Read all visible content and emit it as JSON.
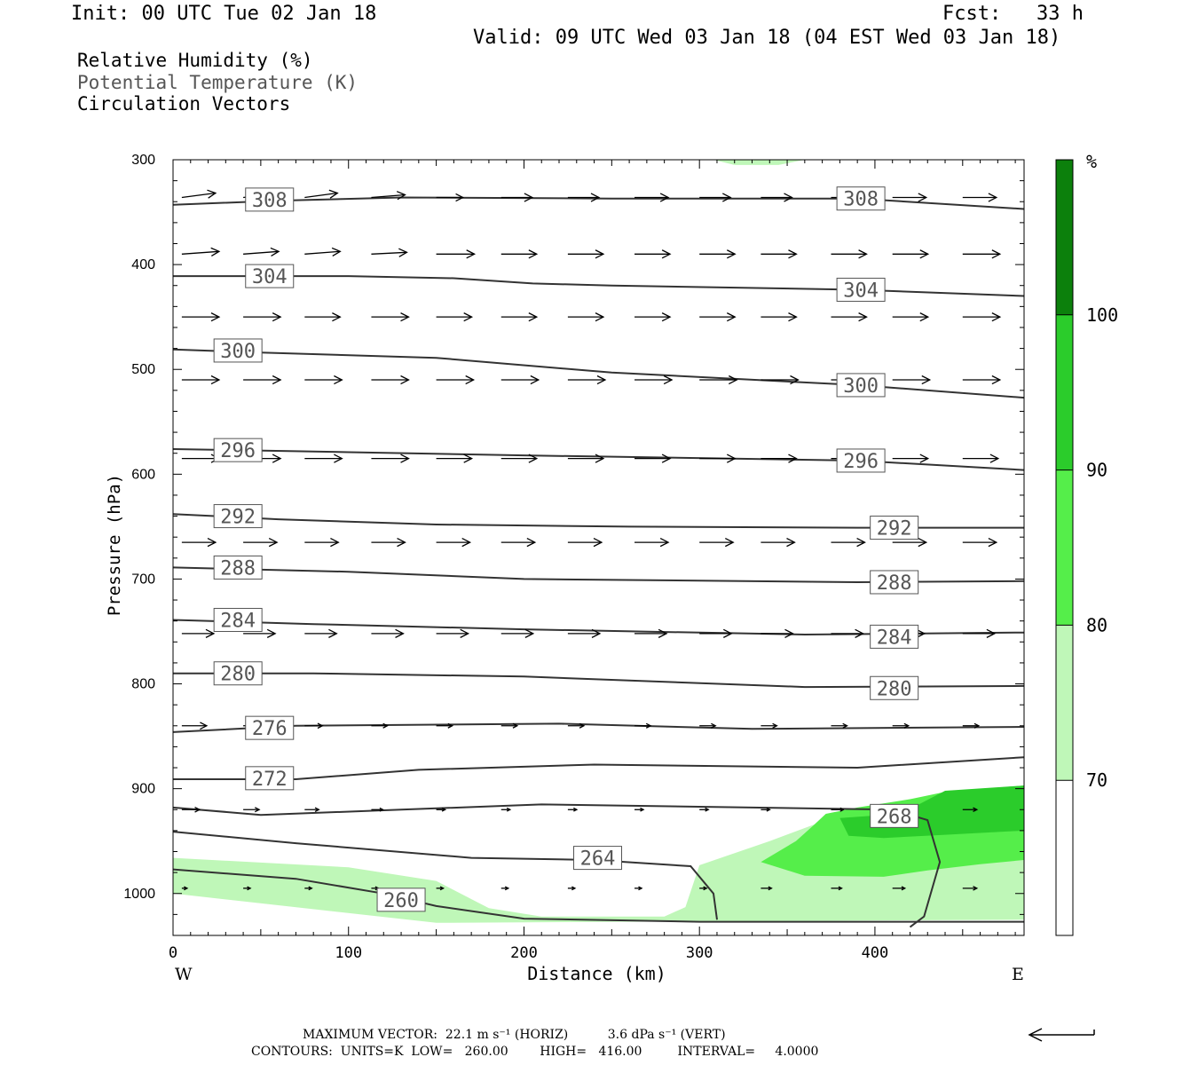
{
  "header": {
    "init": "Init: 00 UTC Tue 02 Jan 18",
    "fcst": "Fcst:   33 h",
    "valid": "Valid: 09 UTC Wed 03 Jan 18 (04 EST Wed 03 Jan 18)",
    "field1": "Relative Humidity (%)",
    "field2": "Potential Temperature (K)",
    "field3": "Circulation Vectors"
  },
  "footer": {
    "vector_line": "MAXIMUM VECTOR:  22.1 m s⁻¹ (HORIZ)          3.6 dPa s⁻¹ (VERT)",
    "contour_line": "CONTOURS:  UNITS=K  LOW=   260.00        HIGH=   416.00         INTERVAL=     4.0000"
  },
  "colorbar": {
    "unit": "%",
    "ticks": [
      "70",
      "80",
      "90",
      "100"
    ],
    "colors": [
      "#ffffff",
      "#bff7b8",
      "#55ee4a",
      "#2bcc2b",
      "#0c800c"
    ]
  },
  "chart_data": {
    "type": "cross-section",
    "xlabel": "Distance (km)",
    "ylabel": "Pressure (hPa)",
    "xlim": [
      0,
      485
    ],
    "ylim": [
      300,
      1040
    ],
    "x_ticks": [
      "0",
      "100",
      "200",
      "300",
      "400"
    ],
    "y_ticks": [
      "300",
      "400",
      "500",
      "600",
      "700",
      "800",
      "900",
      "1000"
    ],
    "x_end_labels": {
      "left": "W",
      "right": "E"
    },
    "contour_labels": [
      {
        "value": "308",
        "x": 55,
        "p": 338
      },
      {
        "value": "308",
        "x": 392,
        "p": 337
      },
      {
        "value": "304",
        "x": 55,
        "p": 411
      },
      {
        "value": "304",
        "x": 392,
        "p": 424
      },
      {
        "value": "300",
        "x": 37,
        "p": 482
      },
      {
        "value": "300",
        "x": 392,
        "p": 515
      },
      {
        "value": "296",
        "x": 37,
        "p": 577
      },
      {
        "value": "296",
        "x": 392,
        "p": 587
      },
      {
        "value": "292",
        "x": 37,
        "p": 640
      },
      {
        "value": "292",
        "x": 411,
        "p": 651
      },
      {
        "value": "288",
        "x": 37,
        "p": 689
      },
      {
        "value": "288",
        "x": 411,
        "p": 703
      },
      {
        "value": "284",
        "x": 37,
        "p": 739
      },
      {
        "value": "284",
        "x": 411,
        "p": 755
      },
      {
        "value": "280",
        "x": 37,
        "p": 790
      },
      {
        "value": "280",
        "x": 411,
        "p": 804
      },
      {
        "value": "276",
        "x": 55,
        "p": 842
      },
      {
        "value": "272",
        "x": 55,
        "p": 890
      },
      {
        "value": "268",
        "x": 411,
        "p": 926
      },
      {
        "value": "264",
        "x": 242,
        "p": 966
      },
      {
        "value": "260",
        "x": 130,
        "p": 1006
      }
    ],
    "isentropes": [
      {
        "theta": 308,
        "pts": [
          [
            0,
            343
          ],
          [
            60,
            339
          ],
          [
            130,
            336
          ],
          [
            250,
            337
          ],
          [
            390,
            337
          ],
          [
            485,
            347
          ]
        ]
      },
      {
        "theta": 304,
        "pts": [
          [
            0,
            411
          ],
          [
            100,
            411
          ],
          [
            160,
            413
          ],
          [
            205,
            418
          ],
          [
            250,
            420
          ],
          [
            390,
            424
          ],
          [
            485,
            430
          ]
        ]
      },
      {
        "theta": 300,
        "pts": [
          [
            0,
            481
          ],
          [
            50,
            484
          ],
          [
            150,
            489
          ],
          [
            250,
            503
          ],
          [
            390,
            515
          ],
          [
            485,
            527
          ]
        ]
      },
      {
        "theta": 296,
        "pts": [
          [
            0,
            576
          ],
          [
            100,
            579
          ],
          [
            200,
            582
          ],
          [
            390,
            587
          ],
          [
            485,
            596
          ]
        ]
      },
      {
        "theta": 292,
        "pts": [
          [
            0,
            638
          ],
          [
            60,
            643
          ],
          [
            150,
            648
          ],
          [
            260,
            650
          ],
          [
            390,
            651
          ],
          [
            485,
            651
          ]
        ]
      },
      {
        "theta": 288,
        "pts": [
          [
            0,
            689
          ],
          [
            100,
            693
          ],
          [
            200,
            700
          ],
          [
            390,
            703
          ],
          [
            485,
            702
          ]
        ]
      },
      {
        "theta": 284,
        "pts": [
          [
            0,
            739
          ],
          [
            80,
            743
          ],
          [
            200,
            748
          ],
          [
            360,
            753
          ],
          [
            485,
            751
          ]
        ]
      },
      {
        "theta": 280,
        "pts": [
          [
            0,
            790
          ],
          [
            80,
            790
          ],
          [
            200,
            793
          ],
          [
            360,
            803
          ],
          [
            485,
            802
          ]
        ]
      },
      {
        "theta": 276,
        "pts": [
          [
            0,
            846
          ],
          [
            70,
            840
          ],
          [
            220,
            838
          ],
          [
            330,
            843
          ],
          [
            485,
            841
          ]
        ]
      },
      {
        "theta": 272,
        "pts": [
          [
            0,
            891
          ],
          [
            70,
            891
          ],
          [
            140,
            882
          ],
          [
            240,
            877
          ],
          [
            390,
            880
          ],
          [
            485,
            870
          ]
        ]
      },
      {
        "theta": 268,
        "pts": [
          [
            0,
            918
          ],
          [
            50,
            925
          ],
          [
            130,
            920
          ],
          [
            210,
            915
          ],
          [
            330,
            918
          ],
          [
            410,
            920
          ],
          [
            430,
            930
          ],
          [
            437,
            970
          ],
          [
            428,
            1022
          ],
          [
            420,
            1032
          ]
        ]
      },
      {
        "theta": 264,
        "pts": [
          [
            0,
            941
          ],
          [
            70,
            952
          ],
          [
            170,
            966
          ],
          [
            240,
            968
          ],
          [
            295,
            974
          ],
          [
            308,
            1000
          ],
          [
            310,
            1025
          ]
        ]
      },
      {
        "theta": 260,
        "pts": [
          [
            0,
            977
          ],
          [
            70,
            986
          ],
          [
            120,
            1000
          ],
          [
            150,
            1012
          ],
          [
            200,
            1024
          ],
          [
            300,
            1027
          ],
          [
            485,
            1027
          ]
        ]
      }
    ],
    "rh_regions": [
      {
        "band": "70-80",
        "pts": [
          [
            0,
            966
          ],
          [
            100,
            975
          ],
          [
            150,
            988
          ],
          [
            180,
            1014
          ],
          [
            210,
            1022
          ],
          [
            280,
            1022
          ],
          [
            292,
            1013
          ],
          [
            300,
            973
          ],
          [
            340,
            950
          ],
          [
            380,
            925
          ],
          [
            420,
            910
          ],
          [
            485,
            900
          ],
          [
            485,
            1025
          ],
          [
            150,
            1028
          ],
          [
            0,
            1000
          ]
        ]
      },
      {
        "band": "80-90",
        "pts": [
          [
            335,
            970
          ],
          [
            355,
            950
          ],
          [
            365,
            935
          ],
          [
            372,
            924
          ],
          [
            390,
            918
          ],
          [
            420,
            910
          ],
          [
            440,
            903
          ],
          [
            485,
            897
          ],
          [
            485,
            968
          ],
          [
            460,
            972
          ],
          [
            430,
            978
          ],
          [
            405,
            984
          ],
          [
            360,
            983
          ]
        ]
      },
      {
        "band": "90-100",
        "pts": [
          [
            380,
            928
          ],
          [
            405,
            925
          ],
          [
            425,
            915
          ],
          [
            440,
            902
          ],
          [
            485,
            897
          ],
          [
            485,
            940
          ],
          [
            440,
            944
          ],
          [
            405,
            947
          ],
          [
            385,
            945
          ]
        ]
      },
      {
        "band": "70-80",
        "pts": [
          [
            308,
            300
          ],
          [
            320,
            305
          ],
          [
            345,
            305
          ],
          [
            360,
            300
          ]
        ]
      }
    ],
    "vector_rows": [
      {
        "p": 336,
        "x": [
          5,
          40,
          75,
          113,
          150,
          187,
          225,
          263,
          300,
          335,
          375,
          410,
          450
        ],
        "dx": [
          38,
          37,
          37,
          38,
          30,
          35,
          35,
          38,
          35,
          35,
          35,
          38,
          38
        ],
        "dy": [
          -5,
          -4,
          -5,
          -3,
          0,
          0,
          0,
          0,
          0,
          0,
          0,
          0,
          0
        ]
      },
      {
        "p": 390,
        "x": [
          5,
          40,
          75,
          113,
          150,
          187,
          225,
          263,
          300,
          335,
          375,
          410,
          450
        ],
        "dx": [
          42,
          40,
          40,
          40,
          43,
          40,
          40,
          40,
          40,
          40,
          40,
          40,
          42
        ],
        "dy": [
          -3,
          -3,
          -3,
          -2,
          0,
          0,
          0,
          0,
          0,
          0,
          0,
          0,
          0
        ]
      },
      {
        "p": 450,
        "x": [
          5,
          40,
          75,
          113,
          150,
          187,
          225,
          263,
          300,
          335,
          375,
          410,
          450
        ],
        "dx": [
          42,
          42,
          40,
          42,
          40,
          40,
          40,
          40,
          40,
          40,
          40,
          40,
          42
        ],
        "dy": [
          0,
          0,
          0,
          0,
          0,
          0,
          0,
          0,
          0,
          0,
          0,
          0,
          0
        ]
      },
      {
        "p": 510,
        "x": [
          5,
          40,
          75,
          113,
          150,
          187,
          225,
          263,
          300,
          335,
          375,
          410,
          450
        ],
        "dx": [
          42,
          42,
          42,
          42,
          42,
          42,
          42,
          42,
          42,
          42,
          42,
          42,
          42
        ],
        "dy": [
          0,
          0,
          0,
          0,
          0,
          0,
          0,
          0,
          0,
          0,
          0,
          0,
          0
        ]
      },
      {
        "p": 585,
        "x": [
          5,
          40,
          75,
          113,
          150,
          187,
          225,
          263,
          300,
          335,
          375,
          410,
          450
        ],
        "dx": [
          42,
          42,
          42,
          42,
          40,
          40,
          40,
          40,
          40,
          40,
          40,
          40,
          40
        ],
        "dy": [
          0,
          0,
          0,
          0,
          0,
          0,
          0,
          0,
          0,
          0,
          0,
          0,
          0
        ]
      },
      {
        "p": 665,
        "x": [
          5,
          40,
          75,
          113,
          150,
          187,
          225,
          263,
          300,
          335,
          375,
          410,
          450
        ],
        "dx": [
          38,
          38,
          38,
          38,
          38,
          38,
          38,
          38,
          38,
          38,
          38,
          38,
          38
        ],
        "dy": [
          0,
          0,
          0,
          0,
          0,
          0,
          0,
          0,
          0,
          0,
          0,
          0,
          0
        ]
      },
      {
        "p": 752,
        "x": [
          5,
          40,
          75,
          113,
          150,
          187,
          225,
          263,
          300,
          335,
          375,
          410,
          450
        ],
        "dx": [
          36,
          36,
          36,
          36,
          36,
          36,
          36,
          36,
          36,
          36,
          36,
          36,
          36
        ],
        "dy": [
          0,
          0,
          0,
          0,
          0,
          0,
          0,
          0,
          0,
          0,
          0,
          0,
          0
        ]
      },
      {
        "p": 840,
        "x": [
          5,
          40,
          75,
          113,
          150,
          187,
          225,
          263,
          300,
          335,
          375,
          410,
          450
        ],
        "dx": [
          28,
          22,
          20,
          18,
          18,
          18,
          18,
          18,
          18,
          18,
          18,
          18,
          18
        ],
        "dy": [
          0,
          0,
          0,
          0,
          0,
          0,
          0,
          0,
          0,
          0,
          0,
          0,
          0
        ]
      },
      {
        "p": 920,
        "x": [
          5,
          40,
          75,
          113,
          150,
          187,
          225,
          263,
          300,
          335,
          375,
          410,
          450
        ],
        "dx": [
          20,
          18,
          16,
          13,
          10,
          10,
          10,
          10,
          10,
          10,
          14,
          14,
          16
        ],
        "dy": [
          0,
          0,
          0,
          0,
          0,
          0,
          0,
          0,
          0,
          0,
          0,
          0,
          0
        ]
      },
      {
        "p": 995,
        "x": [
          5,
          40,
          75,
          113,
          150,
          187,
          225,
          263,
          300,
          335,
          375,
          410,
          450
        ],
        "dx": [
          6,
          8,
          8,
          8,
          8,
          8,
          8,
          8,
          8,
          12,
          12,
          14,
          16
        ],
        "dy": [
          0,
          0,
          0,
          0,
          0,
          0,
          0,
          0,
          0,
          0,
          0,
          0,
          0
        ]
      }
    ]
  }
}
